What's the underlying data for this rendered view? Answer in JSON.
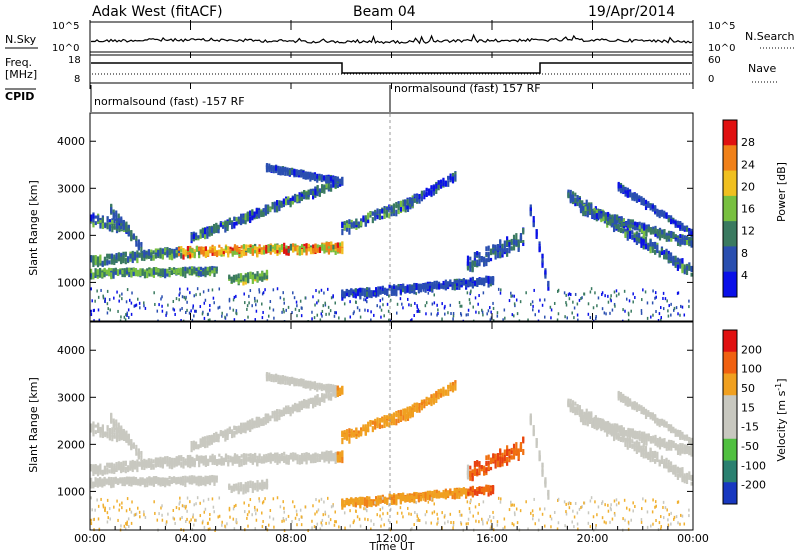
{
  "header": {
    "title": "Adak West (fitACF)",
    "beam": "Beam 04",
    "date": "19/Apr/2014"
  },
  "noise_panel": {
    "left_label": "N.Sky",
    "right_label": "N.Search",
    "left_ticks": [
      "10^5",
      "10^0"
    ],
    "right_ticks": [
      "10^5",
      "10^0"
    ]
  },
  "freq_panel": {
    "left_label_1": "Freq.",
    "left_label_2": "[MHz]",
    "left_ticks": [
      "18",
      "8"
    ],
    "right_label": "Nave",
    "right_ticks": [
      "60",
      "0"
    ]
  },
  "cpid": {
    "label": "CPID",
    "segment_1": "normalsound (fast) -157 RF",
    "segment_2": "normalsound (fast) 157 RF"
  },
  "chart_data": [
    {
      "type": "heatmap",
      "name": "power",
      "ylabel": "Slant Range [km]",
      "y_ticks": [
        "1000",
        "2000",
        "3000",
        "4000"
      ],
      "ylim": [
        180,
        4600
      ],
      "colorbar_label": "Power [dB]",
      "colorbar_ticks": [
        "28",
        "24",
        "20",
        "16",
        "12",
        "8",
        "4"
      ],
      "colors": [
        "#0a10e8",
        "#2a4fb0",
        "#3a7a60",
        "#78c040",
        "#f0c020",
        "#f08018",
        "#e01010"
      ]
    },
    {
      "type": "heatmap",
      "name": "velocity",
      "ylabel": "Slant Range [km]",
      "y_ticks": [
        "1000",
        "2000",
        "3000",
        "4000"
      ],
      "ylim": [
        180,
        4600
      ],
      "colorbar_label": "Velocity [m s",
      "colorbar_label_sup": "-1",
      "colorbar_label_end": "]",
      "colorbar_ticks": [
        "200",
        "100",
        "50",
        "15",
        "-15",
        "-50",
        "-100",
        "-200"
      ],
      "colors": [
        "#1838c0",
        "#2a8070",
        "#50c040",
        "#c8c8c0",
        "#c8c8c0",
        "#f0a020",
        "#f06010",
        "#e01010"
      ]
    }
  ],
  "x_axis": {
    "label": "Time UT",
    "ticks": [
      "00:00",
      "04:00",
      "08:00",
      "12:00",
      "16:00",
      "20:00",
      "00:00"
    ]
  }
}
